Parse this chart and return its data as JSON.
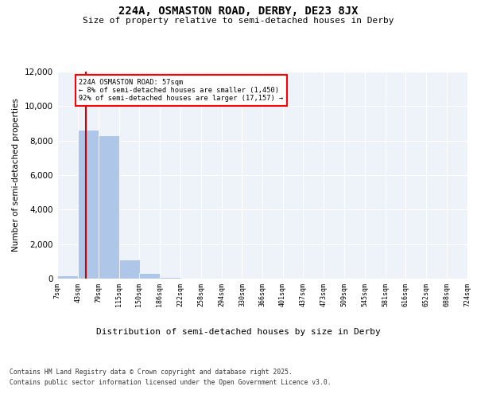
{
  "title_line1": "224A, OSMASTON ROAD, DERBY, DE23 8JX",
  "title_line2": "Size of property relative to semi-detached houses in Derby",
  "xlabel": "Distribution of semi-detached houses by size in Derby",
  "ylabel": "Number of semi-detached properties",
  "bar_color": "#aec6e8",
  "marker_color": "#cc0000",
  "marker_value": 57,
  "annotation_title": "224A OSMASTON ROAD: 57sqm",
  "annotation_line2": "← 8% of semi-detached houses are smaller (1,450)",
  "annotation_line3": "92% of semi-detached houses are larger (17,157) →",
  "footer_line1": "Contains HM Land Registry data © Crown copyright and database right 2025.",
  "footer_line2": "Contains public sector information licensed under the Open Government Licence v3.0.",
  "bin_edges": [
    7,
    43,
    79,
    115,
    150,
    186,
    222,
    258,
    294,
    330,
    366,
    401,
    437,
    473,
    509,
    545,
    581,
    616,
    652,
    688,
    724
  ],
  "bin_labels": [
    "7sqm",
    "43sqm",
    "79sqm",
    "115sqm",
    "150sqm",
    "186sqm",
    "222sqm",
    "258sqm",
    "294sqm",
    "330sqm",
    "366sqm",
    "401sqm",
    "437sqm",
    "473sqm",
    "509sqm",
    "545sqm",
    "581sqm",
    "616sqm",
    "652sqm",
    "688sqm",
    "724sqm"
  ],
  "bar_heights": [
    200,
    8650,
    8300,
    1100,
    320,
    90,
    30,
    0,
    0,
    0,
    0,
    0,
    0,
    0,
    0,
    0,
    0,
    0,
    0,
    0
  ],
  "ylim": [
    0,
    12000
  ],
  "yticks": [
    0,
    2000,
    4000,
    6000,
    8000,
    10000,
    12000
  ],
  "background_color": "#eef2f9"
}
